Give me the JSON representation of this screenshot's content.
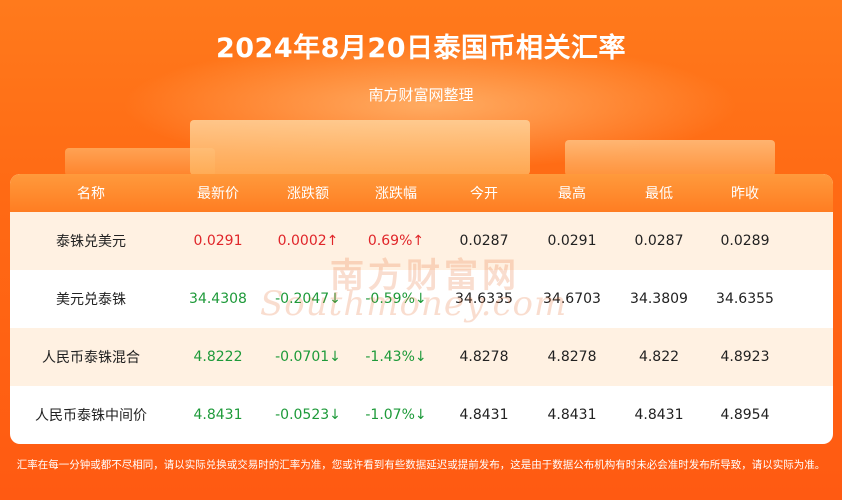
{
  "header": {
    "title": "2024年8月20日泰国币相关汇率",
    "subtitle": "南方财富网整理"
  },
  "table": {
    "columns": [
      "名称",
      "最新价",
      "涨跌额",
      "涨跌幅",
      "今开",
      "最高",
      "最低",
      "昨收"
    ],
    "rows": [
      {
        "name": "泰铢兑美元",
        "latest": "0.0291",
        "change": "0.0002↑",
        "pct": "0.69%↑",
        "open": "0.0287",
        "high": "0.0291",
        "low": "0.0287",
        "prev": "0.0289",
        "direction": "up"
      },
      {
        "name": "美元兑泰铢",
        "latest": "34.4308",
        "change": "-0.2047↓",
        "pct": "-0.59%↓",
        "open": "34.6335",
        "high": "34.6703",
        "low": "34.3809",
        "prev": "34.6355",
        "direction": "down"
      },
      {
        "name": "人民币泰铢混合",
        "latest": "4.8222",
        "change": "-0.0701↓",
        "pct": "-1.43%↓",
        "open": "4.8278",
        "high": "4.8278",
        "low": "4.822",
        "prev": "4.8923",
        "direction": "down"
      },
      {
        "name": "人民币泰铢中间价",
        "latest": "4.8431",
        "change": "-0.0523↓",
        "pct": "-1.07%↓",
        "open": "4.8431",
        "high": "4.8431",
        "low": "4.8431",
        "prev": "4.8954",
        "direction": "down"
      }
    ]
  },
  "watermark": {
    "cn": "南方财富网",
    "en": "Southmoney.com"
  },
  "footer": {
    "note": "汇率在每一分钟或都不尽相同，请以实际兑换或交易时的汇率为准，您或许看到有些数据延迟或提前发布，这是由于数据公布机构有时未必会准时发布所导致，请以实际为准。"
  },
  "colors": {
    "up": "#e0262a",
    "down": "#1e9a3a",
    "background": "#ff6a14",
    "header_row": "#ff8a2a",
    "alt_row": "#fff1e2"
  }
}
